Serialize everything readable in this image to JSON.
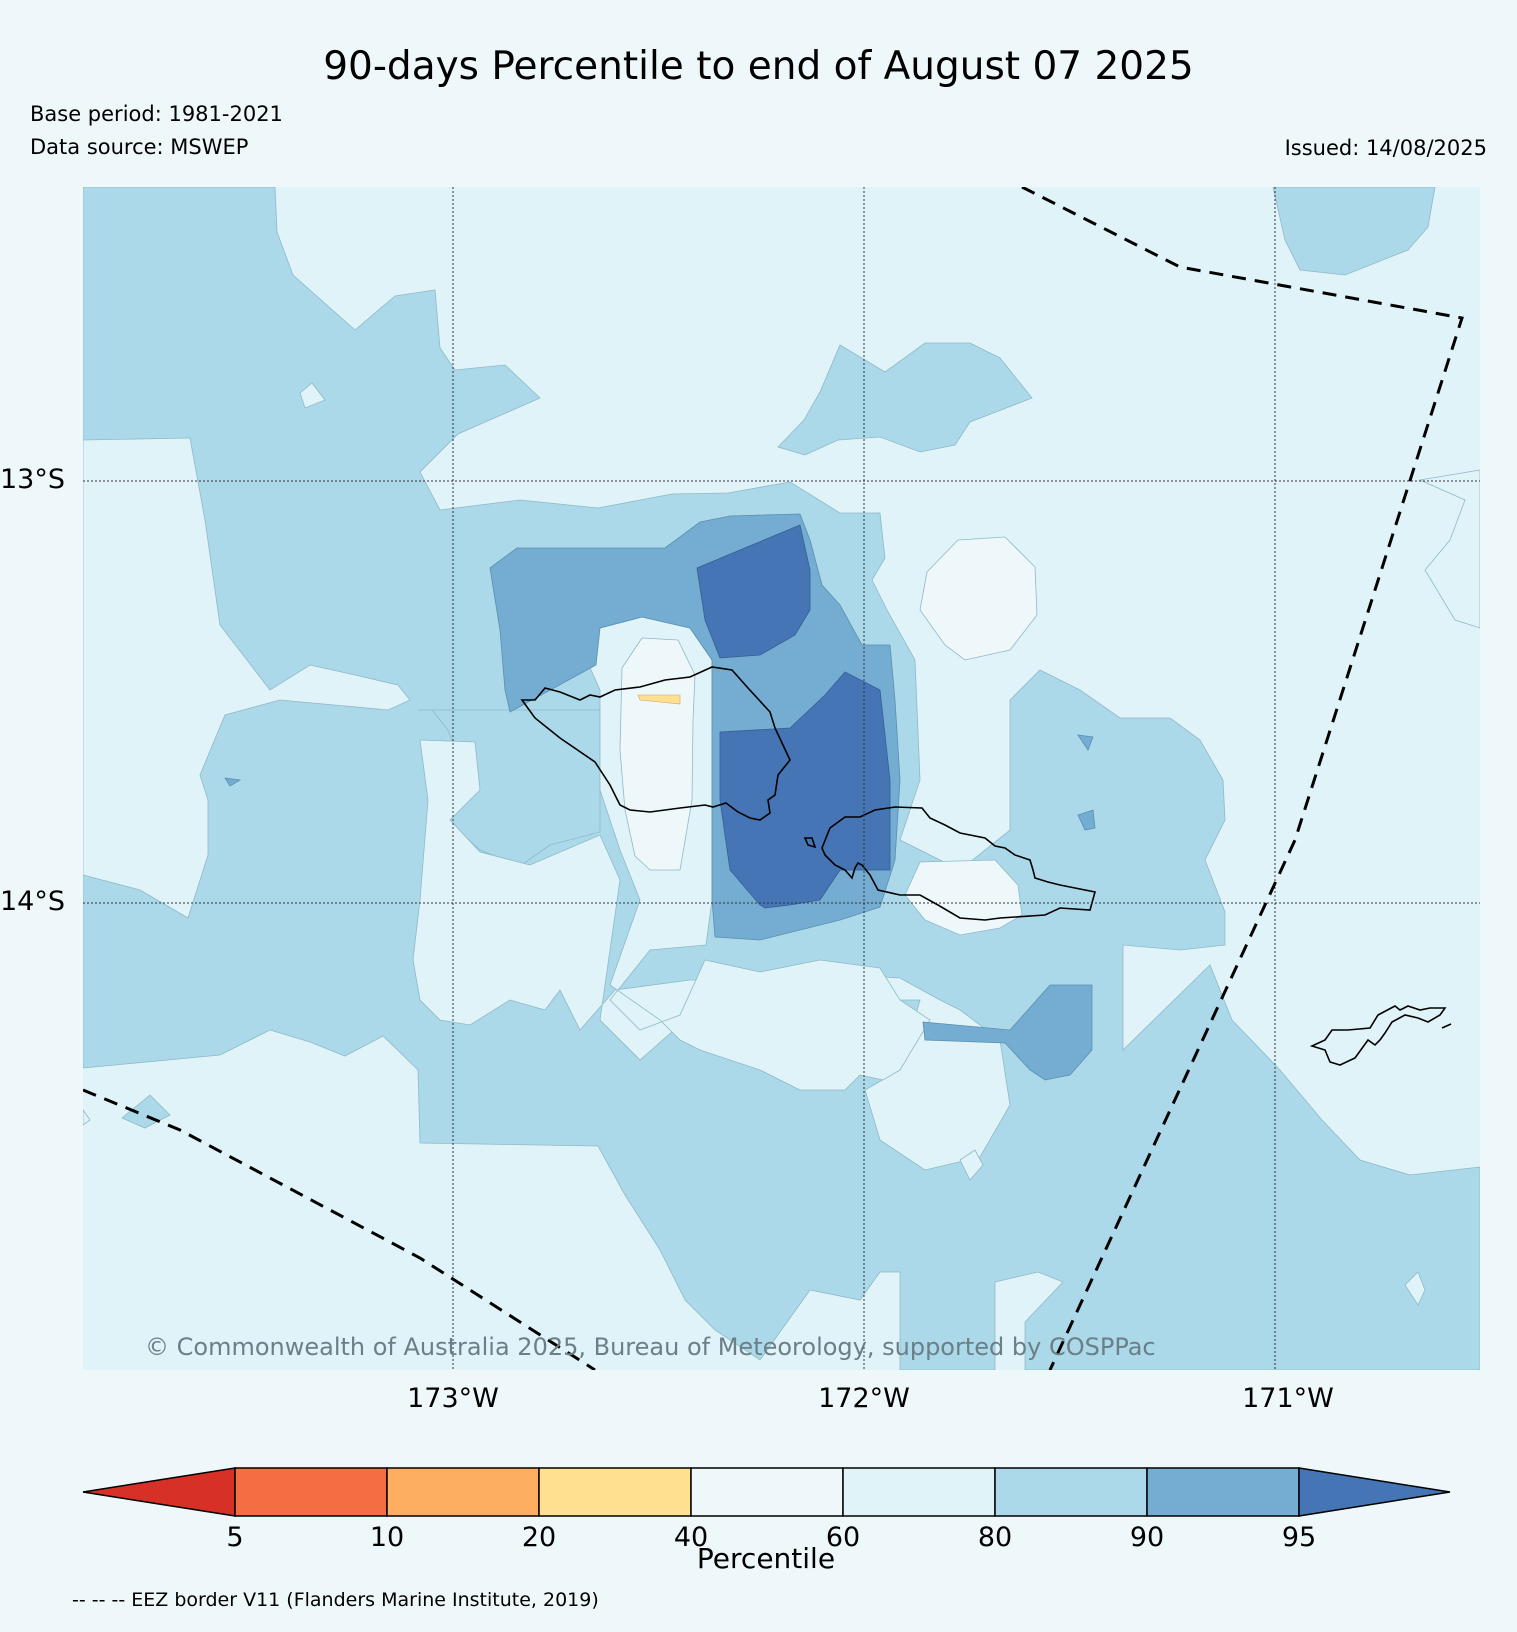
{
  "header": {
    "title": "90-days Percentile to end of August 07 2025",
    "base_period": "Base period: 1981-2021",
    "data_source": "Data source: MSWEP",
    "issued": "Issued: 14/08/2025"
  },
  "map": {
    "lat_labels": [
      "13°S",
      "14°S"
    ],
    "lon_labels": [
      "173°W",
      "172°W",
      "171°W"
    ],
    "copyright": "© Commonwealth of Australia 2025, Bureau of Meteorology, supported by COSPPac"
  },
  "colorbar": {
    "label": "Percentile",
    "ticks": [
      "5",
      "10",
      "20",
      "40",
      "60",
      "80",
      "90",
      "95"
    ],
    "colors": [
      "#d73027",
      "#f46d43",
      "#fdae61",
      "#fee090",
      "#eef7fa",
      "#e0f3f8",
      "#abd9e9",
      "#74add1",
      "#4575b4"
    ]
  },
  "footnote": "-- -- -- EEZ border V11 (Flanders Marine Institute, 2019)"
}
